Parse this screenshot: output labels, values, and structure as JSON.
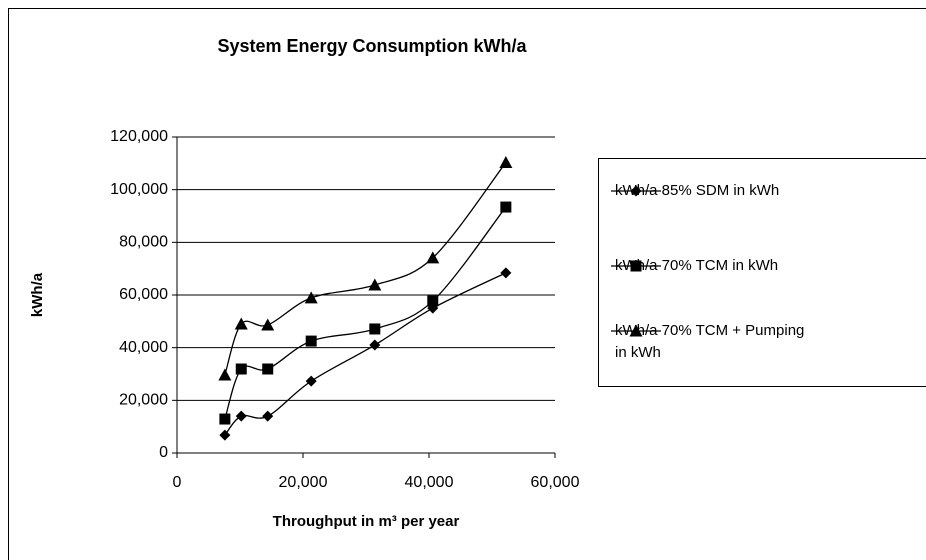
{
  "chart_data": {
    "type": "scatter-line",
    "title": "System Energy Consumption kWh/a",
    "x_label": "Throughput in m³ per year",
    "y_label": "kWh/a",
    "xlim": [
      0,
      60000
    ],
    "xticks": [
      0,
      {
        "value": 20000,
        "label": "20,000"
      },
      {
        "value": 40000,
        "label": "40,000"
      },
      {
        "value": 60000,
        "label": "60,000"
      }
    ],
    "ylim": [
      0,
      120000
    ],
    "yticks": [
      0,
      {
        "value": 20000,
        "label": "20,000"
      },
      {
        "value": 40000,
        "label": "40,000"
      },
      {
        "value": 60000,
        "label": "60,000"
      },
      {
        "value": 80000,
        "label": "80,000"
      },
      {
        "value": 100000,
        "label": "100,000"
      },
      {
        "value": 120000,
        "label": "120,000"
      }
    ],
    "grid": true,
    "smooth": true,
    "legend": "right",
    "x": [
      7600,
      10200,
      14400,
      21300,
      31400,
      40600,
      52200
    ],
    "series": [
      {
        "name": "kWh/a 85% SDM in kWh",
        "color": "#000000",
        "marker": "diamond",
        "values": [
          6800,
          14000,
          14000,
          27300,
          41000,
          55000,
          68400
        ]
      },
      {
        "name": "kWh/a 70% TCM in kWh",
        "color": "#000000",
        "marker": "square",
        "values": [
          12900,
          31900,
          31900,
          42500,
          47100,
          57700,
          93400
        ]
      },
      {
        "name": "kWh/a 70% TCM + Pumping in kWh",
        "color": "#000000",
        "marker": "triangle",
        "values": [
          29600,
          49000,
          48600,
          58900,
          63800,
          74100,
          110300
        ]
      }
    ]
  }
}
